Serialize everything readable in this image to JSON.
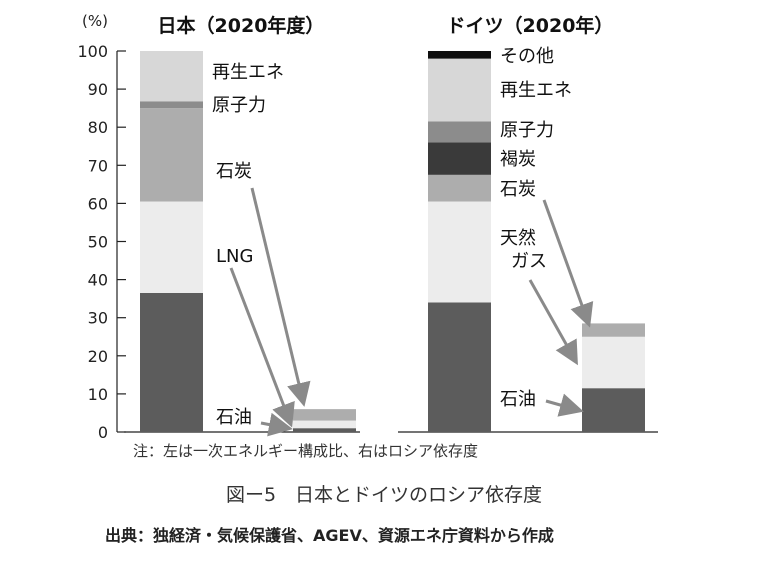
{
  "chart_data": {
    "type": "bar",
    "stacked": true,
    "unit_label": "(%)",
    "yticks": [
      0,
      10,
      20,
      30,
      40,
      50,
      60,
      70,
      80,
      90,
      100
    ],
    "ylim": [
      0,
      100
    ],
    "grid": false,
    "panels": [
      {
        "title": "日本（2020年度）",
        "bars": [
          {
            "segments": [
              {
                "name": "石油",
                "value": 36.5,
                "color": "#5c5c5c"
              },
              {
                "name": "LNG",
                "value": 24.0,
                "color": "#ececec"
              },
              {
                "name": "石炭",
                "value": 24.5,
                "color": "#adadad"
              },
              {
                "name": "原子力",
                "value": 1.8,
                "color": "#8c8c8c"
              },
              {
                "name": "再生エネ",
                "value": 13.2,
                "color": "#d7d7d7"
              }
            ]
          },
          {
            "segments": [
              {
                "name": "石油",
                "value": 1.0,
                "color": "#5c5c5c"
              },
              {
                "name": "LNG",
                "value": 2.0,
                "color": "#ececec"
              },
              {
                "name": "石炭",
                "value": 3.0,
                "color": "#adadad"
              }
            ]
          }
        ],
        "labels": [
          "再生エネ",
          "原子力",
          "石炭",
          "LNG",
          "石油"
        ]
      },
      {
        "title": "ドイツ（2020年）",
        "bars": [
          {
            "segments": [
              {
                "name": "石油",
                "value": 34.0,
                "color": "#5c5c5c"
              },
              {
                "name": "天然ガス",
                "value": 26.5,
                "color": "#ececec"
              },
              {
                "name": "石炭",
                "value": 7.0,
                "color": "#adadad"
              },
              {
                "name": "褐炭",
                "value": 8.5,
                "color": "#3a3a3a"
              },
              {
                "name": "原子力",
                "value": 5.5,
                "color": "#8c8c8c"
              },
              {
                "name": "再生エネ",
                "value": 16.5,
                "color": "#d7d7d7"
              },
              {
                "name": "その他",
                "value": 2.0,
                "color": "#0f0f0f"
              }
            ]
          },
          {
            "segments": [
              {
                "name": "石油",
                "value": 11.5,
                "color": "#5c5c5c"
              },
              {
                "name": "天然ガス",
                "value": 13.5,
                "color": "#ececec"
              },
              {
                "name": "石炭",
                "value": 3.5,
                "color": "#adadad"
              }
            ]
          }
        ],
        "labels": [
          "その他",
          "再生エネ",
          "原子力",
          "褐炭",
          "石炭",
          "天然ガス",
          "石油"
        ]
      }
    ]
  },
  "note": "注：左は一次エネルギー構成比、右はロシア依存度",
  "caption": "図ー5　日本とドイツのロシア依存度",
  "source": "出典：独経済・気候保護省、AGEV、資源エネ庁資料から作成"
}
